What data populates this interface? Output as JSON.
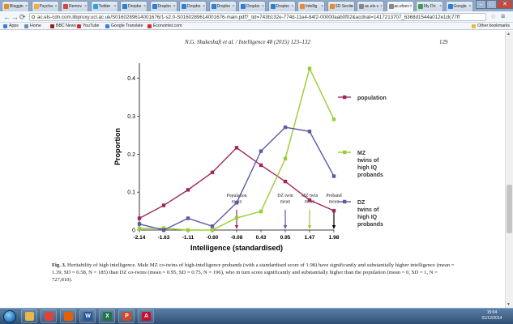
{
  "tabs": [
    {
      "label": "Bloggin",
      "color": "#e98b2c"
    },
    {
      "label": "Psycha",
      "color": "#f2b134"
    },
    {
      "label": "Remov",
      "color": "#d24a3a"
    },
    {
      "label": "Twitter",
      "color": "#2aa3e0"
    },
    {
      "label": "Dropbo",
      "color": "#2d7fd3"
    },
    {
      "label": "Dropbo",
      "color": "#2d7fd3"
    },
    {
      "label": "Dropbo",
      "color": "#2d7fd3"
    },
    {
      "label": "Dropbo",
      "color": "#2d7fd3"
    },
    {
      "label": "Dropbo",
      "color": "#2d7fd3"
    },
    {
      "label": "Dropbo",
      "color": "#2d7fd3"
    },
    {
      "label": "Intellig",
      "color": "#e98b2c"
    },
    {
      "label": "SD Sectio",
      "color": "#e98b2c"
    },
    {
      "label": "ac.els-c",
      "color": "#888888"
    },
    {
      "label": "ac.elsev",
      "color": "#888888",
      "active": true
    },
    {
      "label": "My Dri",
      "color": "#3b9d4a"
    },
    {
      "label": "Google",
      "color": "#2d7fd3"
    }
  ],
  "url": "ac.els-cdn.com.libproxy.ucl.ac.uk/S0160289614001676/1-s2.0-S0160289614001676-main.pdf?_tid=743b132e-774d-11e4-84f2-00000aab0f02&acdnat=1417213707_6368d1544a012e1dc77ff",
  "bookmarks": [
    {
      "label": "Apps",
      "color": "#3b7dd8"
    },
    {
      "label": "Home",
      "color": "#6a8fbf"
    },
    {
      "label": "BBC News",
      "color": "#9a1f1f"
    },
    {
      "label": "YouTube",
      "color": "#d62b2b"
    },
    {
      "label": "Google Translate",
      "color": "#3b7dd8"
    },
    {
      "label": "Economist.com",
      "color": "#d62b2b"
    }
  ],
  "bookmarks_other": "Other bookmarks",
  "document": {
    "running_head": "N.G. Shakeshaft et al. / Intelligence 48 (2015) 123–132",
    "page_number": "129",
    "caption_label": "Fig. 3.",
    "caption_text": " Heritability of high intelligence. Male MZ co-twins of high-intelligence probands (with a standardised score of 1.98) have significantly and substantially higher intelligence (mean = 1.39, SD = 0.58, N = 185) than DZ co-twins (mean = 0.95, SD = 0.75, N = 196), who in turn score significantly and substantially higher than the population (mean = 0, SD = 1, N = 727,810)."
  },
  "chart_data": {
    "type": "line",
    "xlabel": "Intelligence (standardised)",
    "ylabel": "Proportion",
    "x_ticks": [
      "-2.14",
      "-1.63",
      "-1.11",
      "-0.60",
      "-0.08",
      "0.43",
      "0.95",
      "1.47",
      "1.98"
    ],
    "y_ticks": [
      "0",
      "0.1",
      "0.2",
      "0.3",
      "0.4"
    ],
    "ylim": [
      0,
      0.45
    ],
    "series": [
      {
        "name": "population",
        "color": "#a0265a",
        "marker": "square",
        "values": [
          0.031,
          0.065,
          0.106,
          0.152,
          0.217,
          0.171,
          0.128,
          0.079,
          0.051
        ]
      },
      {
        "name": "MZ twins of high IQ probands",
        "color": "#9acd32",
        "marker": "square",
        "values": [
          0.004,
          0.005,
          0.0,
          0.0,
          0.032,
          0.049,
          0.188,
          0.426,
          0.292
        ]
      },
      {
        "name": "DZ twins of high IQ probands",
        "color": "#5a5aa6",
        "marker": "square",
        "values": [
          0.016,
          0.0,
          0.031,
          0.01,
          0.072,
          0.208,
          0.271,
          0.26,
          0.142
        ]
      }
    ],
    "annotations": [
      {
        "text": [
          "Population",
          "mean"
        ],
        "x_index": 4,
        "color": "#a0265a"
      },
      {
        "text": [
          "DZ twin",
          "mean"
        ],
        "x_index": 6,
        "color": "#5a5aa6"
      },
      {
        "text": [
          "MZ twin",
          "mean"
        ],
        "x_index": 7,
        "color": "#9acd32"
      },
      {
        "text": [
          "Proband",
          "mean"
        ],
        "x_index": 8,
        "color": "#000000"
      }
    ],
    "legend_position": "right"
  },
  "taskbar": {
    "apps": [
      {
        "name": "explorer",
        "color": "#e7b84a",
        "glyph": ""
      },
      {
        "name": "chrome",
        "color": "#db4437",
        "glyph": ""
      },
      {
        "name": "firefox",
        "color": "#e66000",
        "glyph": ""
      },
      {
        "name": "word",
        "color": "#2b579a",
        "glyph": "W"
      },
      {
        "name": "excel",
        "color": "#217346",
        "glyph": "X"
      },
      {
        "name": "powerpoint",
        "color": "#d24726",
        "glyph": "P"
      },
      {
        "name": "acrobat",
        "color": "#c8102e",
        "glyph": "A"
      }
    ],
    "time": "15:04",
    "date": "01/12/2014"
  }
}
